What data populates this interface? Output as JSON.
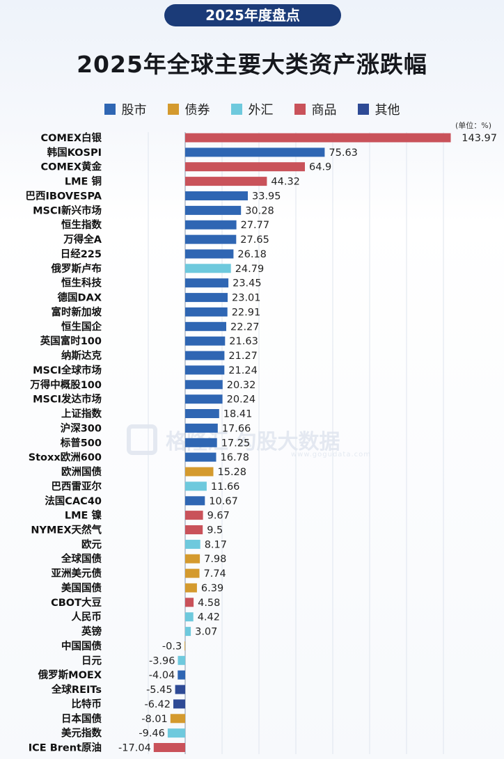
{
  "badge": "2025年度盘点",
  "title": "2025年全球主要大类资产涨跌幅",
  "unit": "(单位：%)",
  "watermark": {
    "text": "格隆汇 勾股大数据",
    "url": "www.gogudata.com"
  },
  "legend": [
    {
      "label": "股市",
      "key": "stock"
    },
    {
      "label": "债券",
      "key": "bond"
    },
    {
      "label": "外汇",
      "key": "fx"
    },
    {
      "label": "商品",
      "key": "commodity"
    },
    {
      "label": "其他",
      "key": "other"
    }
  ],
  "colors": {
    "stock": "#2f66b3",
    "bond": "#d49a2e",
    "fx": "#6ec9dd",
    "commodity": "#c9525a",
    "other": "#2e4a95"
  },
  "chart_data": {
    "type": "bar",
    "orientation": "horizontal",
    "categories": [
      "COMEX白银",
      "韩国KOSPI",
      "COMEX黄金",
      "LME 铜",
      "巴西IBOVESPA",
      "MSCI新兴市场",
      "恒生指数",
      "万得全A",
      "日经225",
      "俄罗斯卢布",
      "恒生科技",
      "德国DAX",
      "富时新加坡",
      "恒生国企",
      "英国富时100",
      "纳斯达克",
      "MSCI全球市场",
      "万得中概股100",
      "MSCI发达市场",
      "上证指数",
      "沪深300",
      "标普500",
      "Stoxx欧洲600",
      "欧洲国债",
      "巴西雷亚尔",
      "法国CAC40",
      "LME 镍",
      "NYMEX天然气",
      "欧元",
      "全球国债",
      "亚洲美元债",
      "美国国债",
      "CBOT大豆",
      "人民币",
      "英镑",
      "中国国债",
      "日元",
      "俄罗斯MOEX",
      "全球REITs",
      "比特币",
      "日本国债",
      "美元指数",
      "ICE Brent原油"
    ],
    "values": [
      143.97,
      75.63,
      64.9,
      44.32,
      33.95,
      30.28,
      27.77,
      27.65,
      26.18,
      24.79,
      23.45,
      23.01,
      22.91,
      22.27,
      21.63,
      21.27,
      21.24,
      20.32,
      20.24,
      18.41,
      17.66,
      17.25,
      16.78,
      15.28,
      11.66,
      10.67,
      9.67,
      9.5,
      8.17,
      7.98,
      7.74,
      6.39,
      4.58,
      4.42,
      3.07,
      -0.3,
      -3.96,
      -4.04,
      -5.45,
      -6.42,
      -8.01,
      -9.46,
      -17.04
    ],
    "value_labels": [
      "143.97",
      "75.63",
      "64.9",
      "44.32",
      "33.95",
      "30.28",
      "27.77",
      "27.65",
      "26.18",
      "24.79",
      "23.45",
      "23.01",
      "22.91",
      "22.27",
      "21.63",
      "21.27",
      "21.24",
      "20.32",
      "20.24",
      "18.41",
      "17.66",
      "17.25",
      "16.78",
      "15.28",
      "11.66",
      "10.67",
      "9.67",
      "9.5",
      "8.17",
      "7.98",
      "7.74",
      "6.39",
      "4.58",
      "4.42",
      "3.07",
      "-0.3",
      "-3.96",
      "-4.04",
      "-5.45",
      "-6.42",
      "-8.01",
      "-9.46",
      "-17.04"
    ],
    "groups": [
      "commodity",
      "stock",
      "commodity",
      "commodity",
      "stock",
      "stock",
      "stock",
      "stock",
      "stock",
      "fx",
      "stock",
      "stock",
      "stock",
      "stock",
      "stock",
      "stock",
      "stock",
      "stock",
      "stock",
      "stock",
      "stock",
      "stock",
      "stock",
      "bond",
      "fx",
      "stock",
      "commodity",
      "commodity",
      "fx",
      "bond",
      "bond",
      "bond",
      "commodity",
      "fx",
      "fx",
      "bond",
      "fx",
      "stock",
      "other",
      "other",
      "bond",
      "fx",
      "commodity"
    ],
    "xlim": [
      -20,
      145
    ],
    "grid": true,
    "legend_position": "top-center"
  }
}
